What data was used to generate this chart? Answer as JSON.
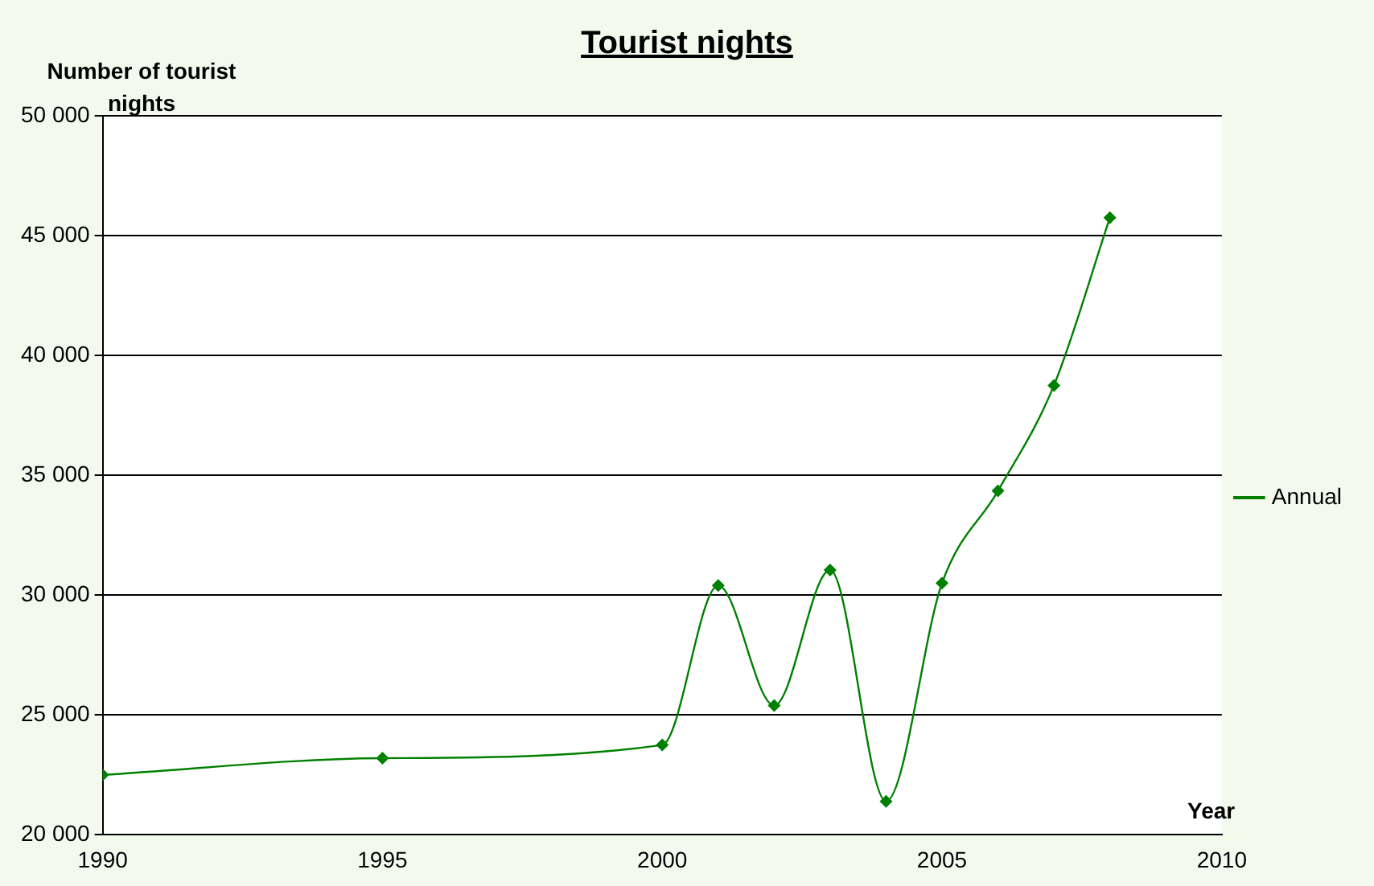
{
  "chart_data": {
    "type": "line",
    "title": "Tourist nights",
    "ylabel": "Number of tourist nights",
    "xlabel": "Year",
    "x": [
      1990,
      1995,
      2000,
      2001,
      2002,
      2003,
      2004,
      2005,
      2006,
      2007,
      2008
    ],
    "series": [
      {
        "name": "Annual",
        "color": "#008000",
        "values": [
          22500,
          23200,
          23750,
          30400,
          25400,
          31050,
          21400,
          30500,
          34350,
          38750,
          45750
        ]
      }
    ],
    "xlim": [
      1990,
      2010
    ],
    "xticks": [
      1990,
      1995,
      2000,
      2005,
      2010
    ],
    "ylim": [
      20000,
      50000
    ],
    "yticks": [
      {
        "value": 20000,
        "label": "20 000"
      },
      {
        "value": 25000,
        "label": "25 000"
      },
      {
        "value": 30000,
        "label": "30 000"
      },
      {
        "value": 35000,
        "label": "35 000"
      },
      {
        "value": 40000,
        "label": "40 000"
      },
      {
        "value": 45000,
        "label": "45 000"
      },
      {
        "value": 50000,
        "label": "50 000"
      }
    ],
    "grid": "y",
    "legend": "right",
    "marker": "diamond",
    "line_style": "solid"
  }
}
